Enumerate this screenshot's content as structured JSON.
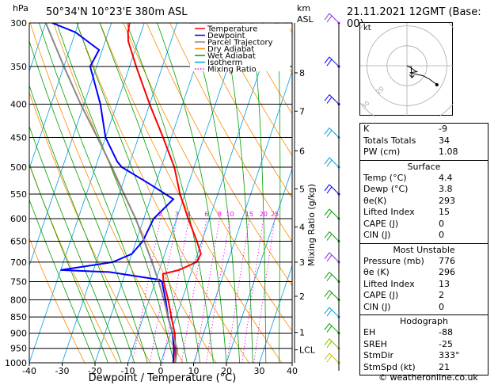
{
  "header": {
    "location": "50°34'N  10°23'E  380m  ASL",
    "datetime": "21.11.2021  12GMT  (Base: 00)",
    "pressure_unit": "hPa",
    "height_unit": "km",
    "height_ref": "ASL"
  },
  "legend": {
    "items": [
      {
        "label": "Temperature",
        "color": "#ff0000",
        "style": "solid"
      },
      {
        "label": "Dewpoint",
        "color": "#0000ff",
        "style": "solid"
      },
      {
        "label": "Parcel Trajectory",
        "color": "#888888",
        "style": "solid"
      },
      {
        "label": "Dry Adiabat",
        "color": "#ff8c00",
        "style": "solid"
      },
      {
        "label": "Wet Adiabat",
        "color": "#00a000",
        "style": "solid"
      },
      {
        "label": "Isotherm",
        "color": "#00a0e0",
        "style": "solid"
      },
      {
        "label": "Mixing Ratio",
        "color": "#ff00ff",
        "style": "dotted"
      }
    ]
  },
  "chart_data": {
    "type": "line",
    "subtype": "skew-t log-p",
    "xlabel": "Dewpoint / Temperature (°C)",
    "ylabel": "Mixing Ratio (g/kg)",
    "x_ticks": [
      -40,
      -30,
      -20,
      -10,
      0,
      10,
      20,
      30,
      40
    ],
    "pressure_levels": [
      300,
      350,
      400,
      450,
      500,
      550,
      600,
      650,
      700,
      750,
      800,
      850,
      900,
      950,
      1000
    ],
    "height_labels": [
      {
        "km": "8",
        "p": 358
      },
      {
        "km": "7",
        "p": 410
      },
      {
        "km": "6",
        "p": 472
      },
      {
        "km": "5",
        "p": 540
      },
      {
        "km": "4",
        "p": 618
      },
      {
        "km": "3",
        "p": 700
      },
      {
        "km": "2",
        "p": 790
      },
      {
        "km": "1",
        "p": 898
      },
      {
        "km": "LCL",
        "p": 955
      }
    ],
    "mixing_ratio_labels": [
      "2",
      "3",
      "4",
      "6",
      "8",
      "10",
      "15",
      "20",
      "25"
    ],
    "mixing_ratio_values": [
      2,
      3,
      4,
      6,
      8,
      10,
      15,
      20,
      25
    ],
    "series": [
      {
        "name": "Temperature",
        "color": "#ff0000",
        "p": [
          1000,
          950,
          900,
          850,
          800,
          750,
          730,
          720,
          700,
          680,
          650,
          600,
          550,
          500,
          450,
          400,
          350,
          320,
          310,
          300
        ],
        "t": [
          4.4,
          3.0,
          1.2,
          -1.5,
          -4.2,
          -7.5,
          -8.5,
          -4.0,
          0.5,
          1.0,
          -1.5,
          -6.5,
          -11.5,
          -16.0,
          -22.5,
          -30.0,
          -38.0,
          -43.0,
          -44.0,
          -44.5
        ]
      },
      {
        "name": "Dewpoint",
        "color": "#0000ff",
        "p": [
          1000,
          950,
          900,
          850,
          800,
          750,
          745,
          725,
          720,
          700,
          680,
          650,
          600,
          560,
          530,
          500,
          490,
          450,
          400,
          350,
          330,
          310,
          300
        ],
        "t": [
          3.8,
          2.5,
          0.5,
          -2.5,
          -5.0,
          -8.0,
          -9.0,
          -25.0,
          -40.0,
          -25.0,
          -20.0,
          -18.0,
          -17.0,
          -13.0,
          -22.0,
          -32.0,
          -34.0,
          -40.0,
          -45.0,
          -52.0,
          -51.0,
          -60.0,
          -68.0
        ]
      },
      {
        "name": "Parcel Trajectory",
        "color": "#888888",
        "p": [
          1000,
          955,
          900,
          850,
          800,
          750,
          700,
          650,
          600,
          550,
          500,
          450,
          400,
          350,
          300
        ],
        "t": [
          4.4,
          3.7,
          0.5,
          -2.5,
          -5.5,
          -9.0,
          -13.0,
          -17.5,
          -22.5,
          -28.5,
          -35.0,
          -42.5,
          -51.0,
          -60.0,
          -70.0
        ]
      }
    ],
    "wind_barbs": [
      {
        "p": 300,
        "color": "#8a2be2"
      },
      {
        "p": 350,
        "color": "#0000ff"
      },
      {
        "p": 400,
        "color": "#0000ff"
      },
      {
        "p": 450,
        "color": "#00a0e0"
      },
      {
        "p": 500,
        "color": "#00a0e0"
      },
      {
        "p": 550,
        "color": "#0000ff"
      },
      {
        "p": 600,
        "color": "#00a000"
      },
      {
        "p": 650,
        "color": "#00a000"
      },
      {
        "p": 700,
        "color": "#8a2be2"
      },
      {
        "p": 750,
        "color": "#00a000"
      },
      {
        "p": 800,
        "color": "#00a000"
      },
      {
        "p": 850,
        "color": "#00a0e0"
      },
      {
        "p": 900,
        "color": "#00a000"
      },
      {
        "p": 950,
        "color": "#80c000"
      },
      {
        "p": 1000,
        "color": "#c0c000"
      }
    ]
  },
  "hodograph": {
    "label": "kt",
    "ring_labels": [
      "10",
      "20",
      "30",
      "40"
    ],
    "points": [
      [
        0.0,
        0.0
      ],
      [
        2.0,
        -1.0
      ],
      [
        4.0,
        -2.5
      ],
      [
        5.0,
        -3.0
      ],
      [
        1.5,
        -3.5
      ],
      [
        8.0,
        -5.0
      ],
      [
        11.0,
        -6.5
      ],
      [
        15.0,
        -9.5
      ]
    ],
    "storm_motion": [
      2.5,
      -6.0
    ],
    "color": "#000000"
  },
  "indices": {
    "rows": [
      {
        "key": "K",
        "value": "-9"
      },
      {
        "key": "Totals Totals",
        "value": "34"
      },
      {
        "key": "PW (cm)",
        "value": "1.08"
      }
    ],
    "surface": {
      "title": "Surface",
      "rows": [
        {
          "key": "Temp (°C)",
          "value": "4.4"
        },
        {
          "key": "Dewp (°C)",
          "value": "3.8"
        },
        {
          "key": "θe(K)",
          "value": "293"
        },
        {
          "key": "Lifted Index",
          "value": "15"
        },
        {
          "key": "CAPE (J)",
          "value": "0"
        },
        {
          "key": "CIN (J)",
          "value": "0"
        }
      ]
    },
    "most_unstable": {
      "title": "Most Unstable",
      "rows": [
        {
          "key": "Pressure (mb)",
          "value": "776"
        },
        {
          "key": "θe (K)",
          "value": "296"
        },
        {
          "key": "Lifted Index",
          "value": "13"
        },
        {
          "key": "CAPE (J)",
          "value": "2"
        },
        {
          "key": "CIN (J)",
          "value": "0"
        }
      ]
    },
    "hodograph_block": {
      "title": "Hodograph",
      "rows": [
        {
          "key": "EH",
          "value": "-88"
        },
        {
          "key": "SREH",
          "value": "-25"
        },
        {
          "key": "StmDir",
          "value": "333°"
        },
        {
          "key": "StmSpd (kt)",
          "value": "21"
        }
      ]
    }
  },
  "footer": {
    "credit": "© weatheronline.co.uk"
  }
}
